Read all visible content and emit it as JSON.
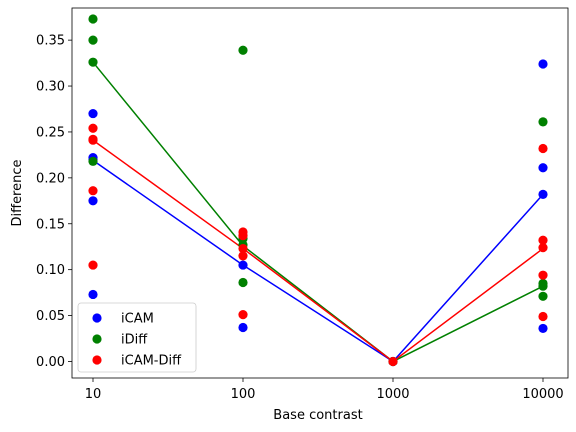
{
  "chart_data": {
    "type": "scatter",
    "xlabel": "Base contrast",
    "ylabel": "Difference",
    "x_scale": "log",
    "categories": [
      "10",
      "100",
      "1000",
      "10000"
    ],
    "ylim": [
      -0.018,
      0.385
    ],
    "yticks": [
      0.0,
      0.05,
      0.1,
      0.15,
      0.2,
      0.25,
      0.3,
      0.35
    ],
    "ytick_labels": [
      "0.00",
      "0.05",
      "0.10",
      "0.15",
      "0.20",
      "0.25",
      "0.30",
      "0.35"
    ],
    "grid": false,
    "legend_position": "lower-left",
    "series": [
      {
        "name": "iCAM",
        "color": "#0000ff",
        "points": {
          "10": [
            0.27,
            0.222,
            0.22,
            0.175,
            0.073
          ],
          "100": [
            0.105,
            0.037
          ],
          "1000": [
            0.0
          ],
          "10000": [
            0.324,
            0.211,
            0.182,
            0.036
          ]
        },
        "line": [
          0.219,
          0.105,
          0.0,
          0.182
        ]
      },
      {
        "name": "iDiff",
        "color": "#008000",
        "points": {
          "10": [
            0.373,
            0.35,
            0.326,
            0.218
          ],
          "100": [
            0.339,
            0.134,
            0.127,
            0.086
          ],
          "1000": [
            0.0
          ],
          "10000": [
            0.261,
            0.085,
            0.082,
            0.071
          ]
        },
        "line": [
          0.326,
          0.126,
          0.0,
          0.082
        ]
      },
      {
        "name": "iCAM-Diff",
        "color": "#ff0000",
        "points": {
          "10": [
            0.254,
            0.242,
            0.241,
            0.186,
            0.105
          ],
          "100": [
            0.141,
            0.137,
            0.123,
            0.115,
            0.051
          ],
          "1000": [
            0.0
          ],
          "10000": [
            0.232,
            0.132,
            0.124,
            0.094,
            0.049
          ]
        },
        "line": [
          0.241,
          0.123,
          0.0,
          0.123
        ]
      }
    ]
  }
}
